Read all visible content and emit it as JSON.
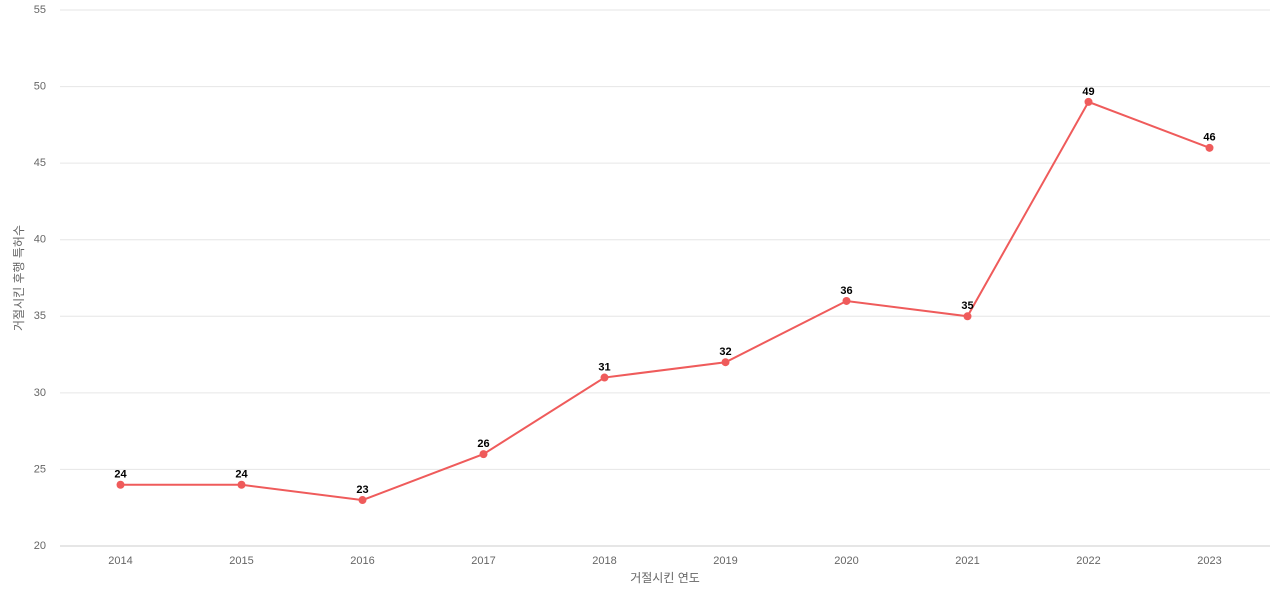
{
  "chart_data": {
    "type": "line",
    "x_label": "거절시킨 연도",
    "y_label": "거절시킨 후행 특허수",
    "categories": [
      "2014",
      "2015",
      "2016",
      "2017",
      "2018",
      "2019",
      "2020",
      "2021",
      "2022",
      "2023"
    ],
    "values": [
      24,
      24,
      23,
      26,
      31,
      32,
      36,
      35,
      49,
      46
    ],
    "color": "#ef5b5b",
    "ylim": [
      20,
      55
    ],
    "yticks": [
      20,
      25,
      30,
      35,
      40,
      45,
      50,
      55
    ],
    "grid": true
  }
}
